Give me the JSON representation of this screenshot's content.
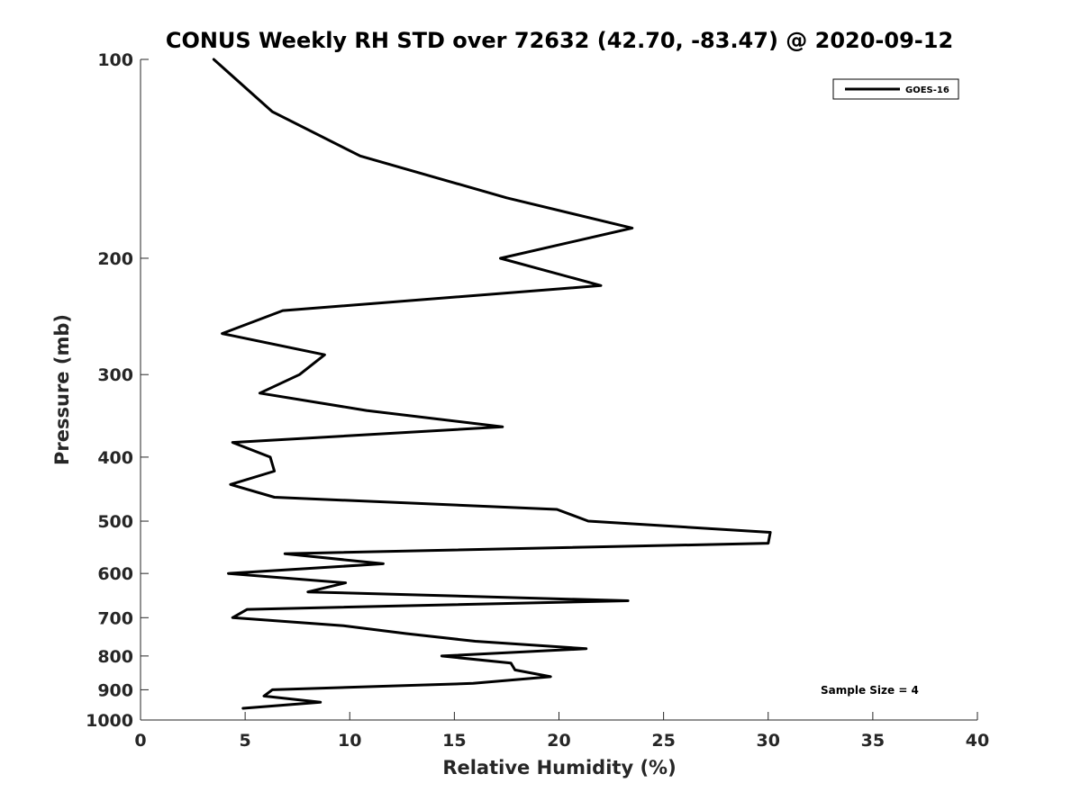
{
  "chart_data": {
    "type": "line",
    "title": "CONUS Weekly RH STD over 72632 (42.70, -83.47) @ 2020-09-12",
    "xlabel": "Relative Humidity (%)",
    "ylabel": "Pressure (mb)",
    "xlim": [
      0,
      40
    ],
    "ylim": [
      100,
      1000
    ],
    "yscale": "log",
    "y_reversed": true,
    "x_ticks": [
      0,
      5,
      10,
      15,
      20,
      25,
      30,
      35,
      40
    ],
    "x_tick_labels": [
      "0",
      "5",
      "10",
      "15",
      "20",
      "25",
      "30",
      "35",
      "40"
    ],
    "y_ticks": [
      100,
      200,
      300,
      400,
      500,
      600,
      700,
      800,
      900,
      1000
    ],
    "y_tick_labels": [
      "100",
      "200",
      "300",
      "400",
      "500",
      "600",
      "700",
      "800",
      "900",
      "1000"
    ],
    "grid": false,
    "legend_position": "top-right",
    "annotation": "Sample Size = 4",
    "series_color": "#000000",
    "series": [
      {
        "name": "GOES-16",
        "x": [
          3.5,
          6.3,
          10.5,
          17.5,
          23.5,
          17.2,
          22.0,
          6.8,
          3.9,
          8.8,
          7.6,
          5.7,
          10.8,
          17.3,
          4.4,
          6.2,
          6.4,
          4.3,
          6.4,
          19.9,
          21.4,
          30.1,
          30.0,
          6.9,
          11.6,
          4.2,
          9.8,
          8.0,
          23.3,
          5.1,
          4.4,
          9.7,
          12.7,
          16.0,
          21.3,
          14.4,
          17.7,
          17.9,
          19.6,
          15.9,
          6.3,
          5.9,
          8.6,
          4.9
        ],
        "y": [
          100,
          120,
          140,
          162,
          180,
          200,
          220,
          240,
          260,
          280,
          300,
          320,
          340,
          360,
          380,
          400,
          420,
          440,
          460,
          480,
          500,
          520,
          540,
          560,
          580,
          600,
          620,
          640,
          660,
          680,
          700,
          720,
          740,
          760,
          780,
          800,
          820,
          840,
          860,
          880,
          900,
          920,
          940,
          960
        ]
      }
    ]
  }
}
